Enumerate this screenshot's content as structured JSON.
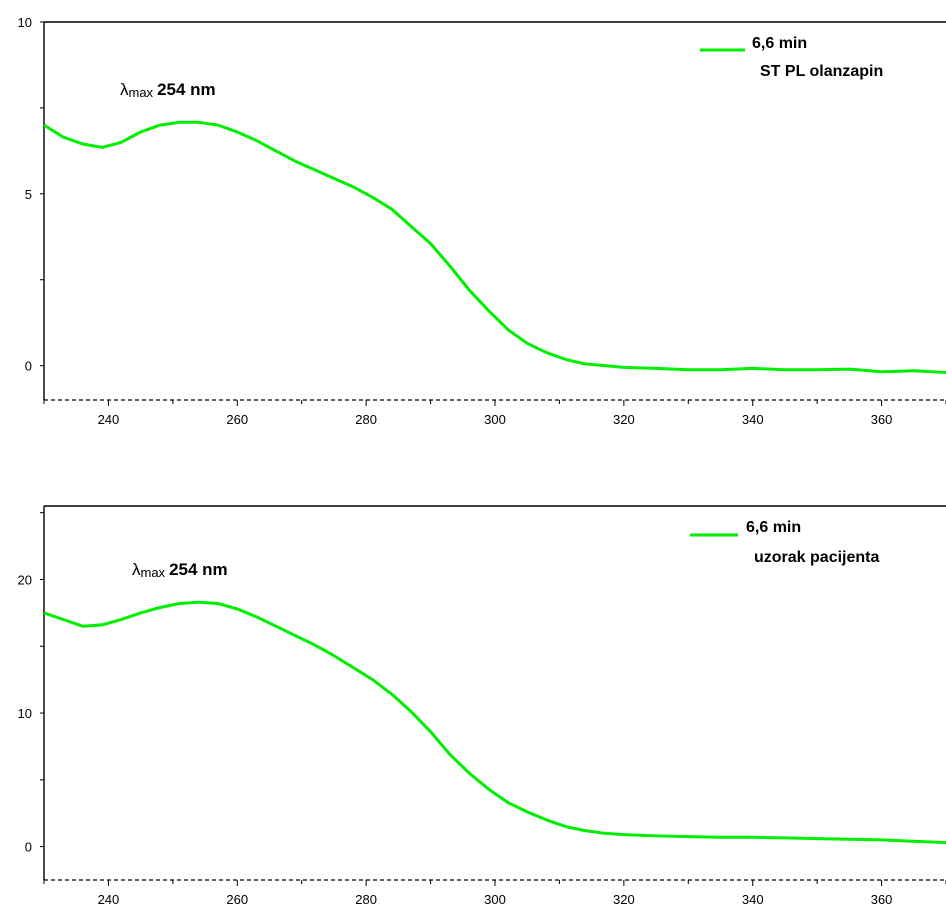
{
  "chart_data": [
    {
      "type": "line",
      "title": "",
      "xlabel": "",
      "ylabel": "",
      "xlim": [
        230,
        370
      ],
      "ylim": [
        -1,
        10
      ],
      "x_ticks": [
        "240",
        "260",
        "280",
        "300",
        "320",
        "340",
        "360"
      ],
      "x_tick_values": [
        240,
        260,
        280,
        300,
        320,
        340,
        360
      ],
      "y_ticks": [
        "0",
        "5",
        "10"
      ],
      "y_tick_values": [
        0,
        5,
        10
      ],
      "grid": false,
      "legend": {
        "placement": "top-right",
        "time": "6,6 min",
        "label": "ST PL olanzapin"
      },
      "annotation": {
        "lambda": "λ",
        "sub": "max",
        "value": "254 nm"
      },
      "series": [
        {
          "name": "ST PL olanzapin",
          "color": "#00ee00",
          "x": [
            230,
            233,
            236,
            239,
            242,
            245,
            248,
            251,
            254,
            257,
            260,
            263,
            266,
            269,
            272,
            275,
            278,
            281,
            284,
            287,
            290,
            293,
            296,
            299,
            302,
            305,
            308,
            311,
            314,
            317,
            320,
            325,
            330,
            335,
            340,
            345,
            350,
            355,
            360,
            365,
            370
          ],
          "y": [
            7.0,
            6.65,
            6.45,
            6.35,
            6.5,
            6.8,
            7.0,
            7.08,
            7.08,
            7.0,
            6.8,
            6.55,
            6.25,
            5.95,
            5.7,
            5.45,
            5.2,
            4.9,
            4.55,
            4.05,
            3.55,
            2.9,
            2.2,
            1.6,
            1.05,
            0.65,
            0.38,
            0.18,
            0.05,
            0.0,
            -0.05,
            -0.08,
            -0.12,
            -0.12,
            -0.08,
            -0.12,
            -0.12,
            -0.1,
            -0.18,
            -0.15,
            -0.2
          ]
        }
      ]
    },
    {
      "type": "line",
      "title": "",
      "xlabel": "",
      "ylabel": "",
      "xlim": [
        230,
        370
      ],
      "ylim": [
        -2.5,
        25.5
      ],
      "x_ticks": [
        "240",
        "260",
        "280",
        "300",
        "320",
        "340",
        "360"
      ],
      "x_tick_values": [
        240,
        260,
        280,
        300,
        320,
        340,
        360
      ],
      "y_ticks": [
        "0",
        "10",
        "20"
      ],
      "y_tick_values": [
        0,
        10,
        20
      ],
      "grid": false,
      "legend": {
        "placement": "top-right",
        "time": "6,6 min",
        "label": "uzorak pacijenta"
      },
      "annotation": {
        "lambda": "λ",
        "sub": "max",
        "value": "254 nm"
      },
      "series": [
        {
          "name": "uzorak pacijenta",
          "color": "#00ee00",
          "x": [
            230,
            233,
            236,
            239,
            242,
            245,
            248,
            251,
            254,
            257,
            260,
            263,
            266,
            269,
            272,
            275,
            278,
            281,
            284,
            287,
            290,
            293,
            296,
            299,
            302,
            305,
            308,
            311,
            314,
            317,
            320,
            325,
            330,
            335,
            340,
            345,
            350,
            355,
            360,
            365,
            370
          ],
          "y": [
            17.5,
            17.0,
            16.5,
            16.6,
            17.0,
            17.5,
            17.9,
            18.2,
            18.3,
            18.2,
            17.8,
            17.2,
            16.5,
            15.8,
            15.1,
            14.3,
            13.4,
            12.5,
            11.4,
            10.1,
            8.6,
            6.9,
            5.5,
            4.3,
            3.3,
            2.6,
            2.0,
            1.5,
            1.2,
            1.0,
            0.9,
            0.8,
            0.75,
            0.7,
            0.7,
            0.65,
            0.6,
            0.55,
            0.5,
            0.4,
            0.3
          ]
        }
      ]
    }
  ]
}
